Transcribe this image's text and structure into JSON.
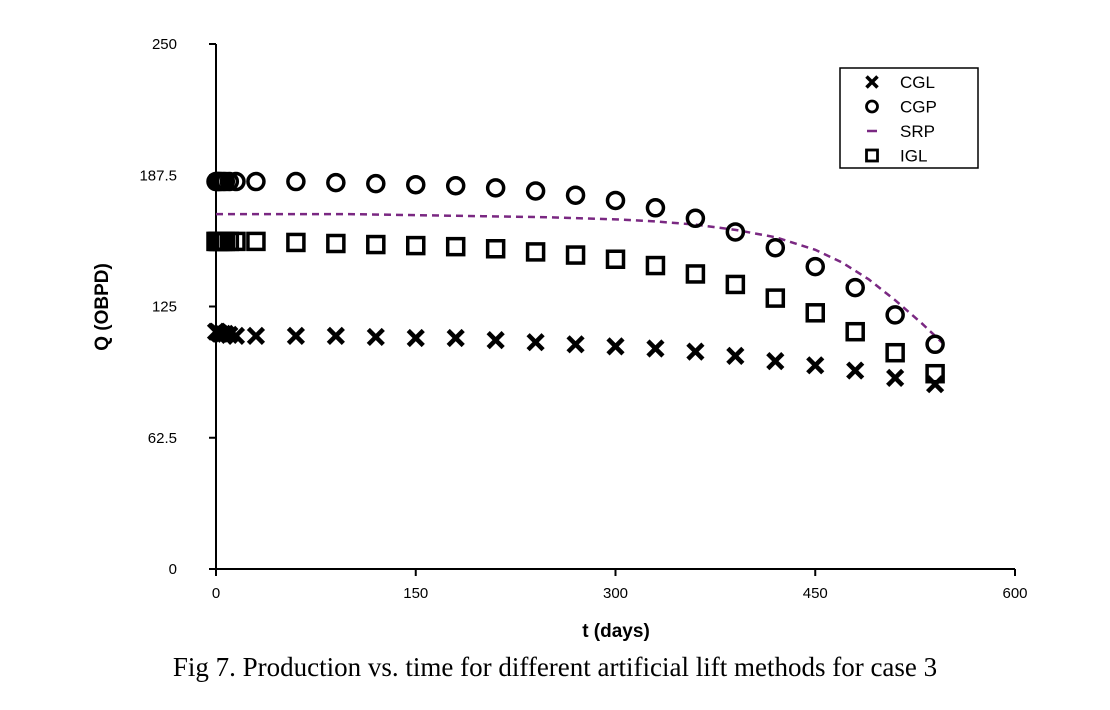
{
  "caption": "Fig 7. Production vs. time for different artificial lift methods for case 3",
  "colors": {
    "axis": "#000000",
    "markers": "#000000",
    "srp": "#7a2882"
  },
  "chart_data": {
    "type": "scatter",
    "title": "",
    "xlabel": "t (days)",
    "ylabel": "Q (OBPD)",
    "xlim": [
      0,
      600
    ],
    "ylim": [
      0,
      250
    ],
    "xticks": [
      0,
      150,
      300,
      450,
      600
    ],
    "xtick_labels": [
      "0",
      "150",
      "300",
      "450",
      "600"
    ],
    "yticks": [
      0,
      62.5,
      125,
      187.5,
      250
    ],
    "ytick_labels": [
      "0",
      "62.5",
      "125",
      "187.5",
      "250"
    ],
    "grid": false,
    "legend_position": "top-right",
    "series": [
      {
        "name": "CGL",
        "marker": "x",
        "x": [
          0,
          1,
          2,
          3,
          5,
          7,
          10,
          15,
          30,
          60,
          90,
          120,
          150,
          180,
          210,
          240,
          270,
          300,
          330,
          360,
          390,
          420,
          450,
          480,
          510,
          540
        ],
        "y": [
          113,
          113,
          112.5,
          112,
          112,
          112,
          111.5,
          111,
          111,
          111,
          111,
          110.5,
          110,
          110,
          109,
          108,
          107,
          106,
          105,
          103.5,
          101.5,
          99,
          97,
          94.5,
          91,
          88
        ]
      },
      {
        "name": "CGP",
        "marker": "o",
        "x": [
          0,
          1,
          2,
          3,
          5,
          7,
          10,
          15,
          30,
          60,
          90,
          120,
          150,
          180,
          210,
          240,
          270,
          300,
          330,
          360,
          390,
          420,
          450,
          480,
          510,
          540
        ],
        "y": [
          184.5,
          184.5,
          184.5,
          184.5,
          184.5,
          184.5,
          184.5,
          184.5,
          184.5,
          184.5,
          184,
          183.5,
          183,
          182.5,
          181.5,
          180,
          178,
          175.5,
          172,
          167,
          160.5,
          153,
          144,
          134,
          121,
          107
        ]
      },
      {
        "name": "SRP",
        "marker": "dashed-line",
        "x": [
          0,
          50,
          100,
          150,
          200,
          250,
          300,
          330,
          360,
          390,
          420,
          450,
          470,
          490,
          510,
          530,
          545
        ],
        "y": [
          169,
          169,
          169,
          168.5,
          168,
          167.5,
          166.5,
          165.5,
          164,
          161.5,
          158,
          152,
          146,
          138,
          128,
          117,
          108
        ]
      },
      {
        "name": "IGL",
        "marker": "square",
        "x": [
          0,
          1,
          2,
          3,
          5,
          7,
          10,
          15,
          30,
          60,
          90,
          120,
          150,
          180,
          210,
          240,
          270,
          300,
          330,
          360,
          390,
          420,
          450,
          480,
          510,
          540
        ],
        "y": [
          156,
          156,
          156,
          156,
          156,
          156,
          156,
          156,
          156,
          155.5,
          155,
          154.5,
          154,
          153.5,
          152.5,
          151,
          149.5,
          147.5,
          144.5,
          140.5,
          135.5,
          129,
          122,
          113,
          103,
          93
        ]
      }
    ]
  }
}
